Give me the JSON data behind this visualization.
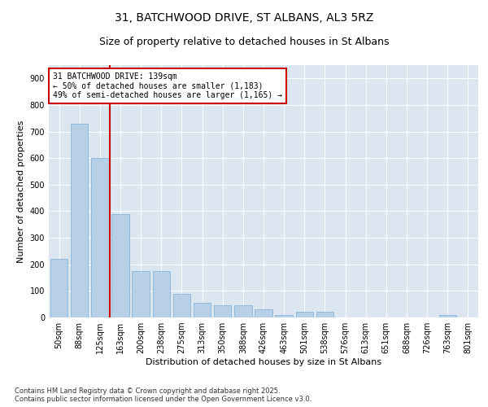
{
  "title": "31, BATCHWOOD DRIVE, ST ALBANS, AL3 5RZ",
  "subtitle": "Size of property relative to detached houses in St Albans",
  "xlabel": "Distribution of detached houses by size in St Albans",
  "ylabel": "Number of detached properties",
  "categories": [
    "50sqm",
    "88sqm",
    "125sqm",
    "163sqm",
    "200sqm",
    "238sqm",
    "275sqm",
    "313sqm",
    "350sqm",
    "388sqm",
    "426sqm",
    "463sqm",
    "501sqm",
    "538sqm",
    "576sqm",
    "613sqm",
    "651sqm",
    "688sqm",
    "726sqm",
    "763sqm",
    "801sqm"
  ],
  "values": [
    220,
    730,
    600,
    390,
    175,
    175,
    90,
    55,
    45,
    45,
    30,
    8,
    20,
    20,
    0,
    0,
    0,
    0,
    0,
    8,
    0
  ],
  "bar_color": "#b8cfe8",
  "bar_edge_color": "#7aadd4",
  "vline_color": "#cc0000",
  "annotation_text": "31 BATCHWOOD DRIVE: 139sqm\n← 50% of detached houses are smaller (1,183)\n49% of semi-detached houses are larger (1,165) →",
  "annotation_box_color": "#cc0000",
  "ylim": [
    0,
    950
  ],
  "yticks": [
    0,
    100,
    200,
    300,
    400,
    500,
    600,
    700,
    800,
    900
  ],
  "background_color": "#dce6f0",
  "footer_text": "Contains HM Land Registry data © Crown copyright and database right 2025.\nContains public sector information licensed under the Open Government Licence v3.0.",
  "title_fontsize": 10,
  "subtitle_fontsize": 9,
  "axis_label_fontsize": 8,
  "tick_fontsize": 7,
  "annotation_fontsize": 7,
  "footer_fontsize": 6
}
